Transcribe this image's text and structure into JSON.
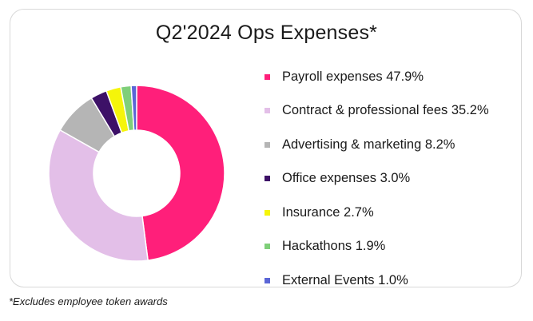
{
  "chart_data": {
    "type": "pie",
    "title": "Q2'2024 Ops Expenses*",
    "donut": true,
    "legend_position": "right",
    "slices": [
      {
        "label": "Payroll expenses 47.9%",
        "value": 47.9,
        "color": "#ff1f7a"
      },
      {
        "label": "Contract & professional fees 35.2%",
        "value": 35.2,
        "color": "#e3bfe8"
      },
      {
        "label": "Advertising & marketing 8.2%",
        "value": 8.2,
        "color": "#b5b5b5"
      },
      {
        "label": "Office expenses 3.0%",
        "value": 3.0,
        "color": "#3d1167"
      },
      {
        "label": "Insurance 2.7%",
        "value": 2.7,
        "color": "#f5f50a"
      },
      {
        "label": "Hackathons 1.9%",
        "value": 1.9,
        "color": "#7fcf79"
      },
      {
        "label": "External Events 1.0%",
        "value": 1.0,
        "color": "#5b66d6"
      }
    ]
  },
  "footnote": "*Excludes employee token awards"
}
